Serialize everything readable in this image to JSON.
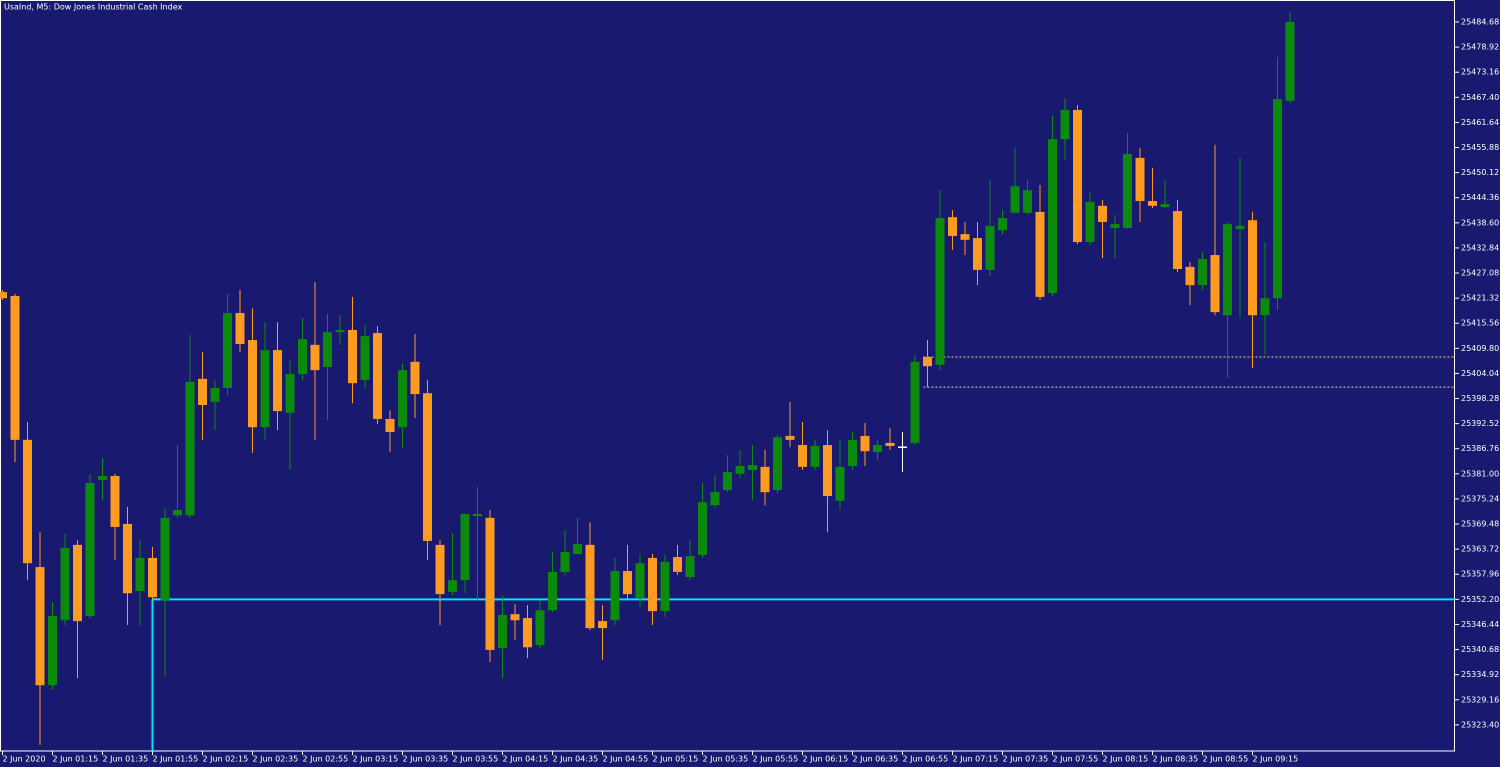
{
  "chart_data": {
    "type": "candlestick",
    "title": "UsaInd, M5:  Dow Jones Industrial Cash Index",
    "background": "#191970",
    "up_color": "#0b8a0b",
    "down_color": "#ff9b21",
    "doji_color": "#ffffff",
    "categories": [
      "2 Jun 2020",
      null,
      null,
      null,
      "2 Jun 01:15",
      null,
      null,
      null,
      "2 Jun 01:35",
      null,
      null,
      null,
      "2 Jun 01:55",
      null,
      null,
      null,
      "2 Jun 02:15",
      null,
      null,
      null,
      "2 Jun 02:35",
      null,
      null,
      null,
      "2 Jun 02:55",
      null,
      null,
      null,
      "2 Jun 03:15",
      null,
      null,
      null,
      "2 Jun 03:35",
      null,
      null,
      null,
      "2 Jun 03:55",
      null,
      null,
      null,
      "2 Jun 04:15",
      null,
      null,
      null,
      "2 Jun 04:35",
      null,
      null,
      null,
      "2 Jun 04:55",
      null,
      null,
      null,
      "2 Jun 05:15",
      null,
      null,
      null,
      "2 Jun 05:35",
      null,
      null,
      null,
      "2 Jun 05:55",
      null,
      null,
      null,
      "2 Jun 06:15",
      null,
      null,
      null,
      "2 Jun 06:35",
      null,
      null,
      null,
      "2 Jun 06:55",
      null,
      null,
      null,
      "2 Jun 07:15",
      null,
      null,
      null,
      "2 Jun 07:35",
      null,
      null,
      null,
      "2 Jun 07:55",
      null,
      null,
      null,
      "2 Jun 08:15",
      null,
      null,
      null,
      "2 Jun 08:35",
      null,
      null,
      null,
      "2 Jun 08:55",
      null,
      null,
      null,
      "2 Jun 09:15",
      null,
      null,
      null
    ],
    "open": [
      25422.7,
      25421.8,
      25388.8,
      25359.6,
      25332.5,
      25347.4,
      25364.7,
      25348.4,
      25379.6,
      25380.5,
      25369.5,
      25354.1,
      25361.7,
      25352.0,
      25371.5,
      25371.5,
      25402.8,
      25397.5,
      25400.7,
      25417.9,
      25411.7,
      25391.7,
      25409.4,
      25395.0,
      25403.9,
      25410.6,
      25405.5,
      25413.5,
      25414.0,
      25402.5,
      25413.3,
      25393.6,
      25391.7,
      25406.7,
      25399.5,
      25364.7,
      25353.9,
      25356.6,
      25371.3,
      25370.9,
      25341.0,
      25348.8,
      25347.9,
      25341.7,
      25349.7,
      25358.5,
      25362.6,
      25364.7,
      25347.2,
      25347.4,
      25358.7,
      25352.5,
      25361.7,
      25349.5,
      25361.9,
      25357.3,
      25362.4,
      25373.8,
      25377.3,
      25381.0,
      25381.9,
      25382.6,
      25377.3,
      25389.7,
      25387.6,
      25382.6,
      25387.6,
      25374.8,
      25382.8,
      25389.7,
      25386.0,
      25388.1,
      25387.1,
      25388.1,
      25407.8,
      25406.0,
      25439.9,
      25436.0,
      25435.1,
      25427.8,
      25436.9,
      25440.9,
      25440.9,
      25441.1,
      25422.5,
      25457.8,
      25464.5,
      25434.2,
      25442.5,
      25437.4,
      25437.4,
      25453.5,
      25443.6,
      25442.2,
      25441.3,
      25428.5,
      25424.3,
      25431.2,
      25417.4,
      25437.2,
      25439.2,
      25417.4,
      25421.3,
      25466.6
    ],
    "high": [
      25423.2,
      25422.3,
      25392.9,
      25367.6,
      25351.6,
      25367.2,
      25365.8,
      25381.0,
      25384.6,
      25381.0,
      25373.4,
      25365.8,
      25364.2,
      25373.1,
      25387.6,
      25412.9,
      25409.0,
      25402.5,
      25422.3,
      25423.2,
      25419.0,
      25415.8,
      25415.8,
      25407.1,
      25416.8,
      25425.0,
      25417.7,
      25417.4,
      25421.6,
      25415.1,
      25414.9,
      25395.6,
      25406.4,
      25413.1,
      25402.5,
      25365.8,
      25367.4,
      25371.8,
      25378.0,
      25372.7,
      25353.0,
      25351.1,
      25350.9,
      25352.0,
      25363.1,
      25368.1,
      25370.9,
      25369.9,
      25350.9,
      25361.7,
      25364.7,
      25362.6,
      25362.6,
      25362.4,
      25364.7,
      25365.8,
      25378.9,
      25380.7,
      25385.3,
      25386.5,
      25387.6,
      25386.5,
      25389.9,
      25397.5,
      25392.9,
      25388.8,
      25391.0,
      25388.8,
      25390.6,
      25392.7,
      25388.8,
      25391.5,
      25390.6,
      25408.3,
      25411.7,
      25446.1,
      25441.5,
      25438.8,
      25438.8,
      25448.4,
      25441.5,
      25455.8,
      25448.4,
      25447.3,
      25463.3,
      25467.2,
      25465.6,
      25445.7,
      25443.8,
      25440.4,
      25459.2,
      25455.8,
      25451.2,
      25448.4,
      25443.8,
      25429.6,
      25431.9,
      25456.5,
      25438.8,
      25453.5,
      25441.1,
      25434.2,
      25476.6,
      25487.0
    ],
    "low": [
      25420.9,
      25383.7,
      25356.6,
      25318.8,
      25331.4,
      25346.3,
      25334.1,
      25347.9,
      25375.0,
      25361.2,
      25346.3,
      25346.3,
      25352.0,
      25334.6,
      25370.9,
      25370.9,
      25388.8,
      25391.0,
      25399.1,
      25409.0,
      25385.8,
      25388.8,
      25391.0,
      25381.9,
      25402.5,
      25388.8,
      25393.3,
      25410.6,
      25397.2,
      25400.7,
      25392.4,
      25386.0,
      25386.9,
      25393.8,
      25361.2,
      25346.3,
      25353.2,
      25353.6,
      25352.0,
      25337.8,
      25334.1,
      25342.9,
      25338.7,
      25341.0,
      25349.3,
      25357.8,
      25362.4,
      25345.1,
      25338.3,
      25346.3,
      25352.0,
      25350.4,
      25346.3,
      25348.1,
      25357.8,
      25356.6,
      25361.7,
      25373.1,
      25376.8,
      25380.0,
      25375.0,
      25373.8,
      25376.6,
      25387.1,
      25381.9,
      25381.9,
      25367.6,
      25372.7,
      25381.9,
      25382.8,
      25384.2,
      25386.5,
      25381.4,
      25387.6,
      25400.9,
      25404.8,
      25432.4,
      25431.2,
      25424.3,
      25426.6,
      25435.8,
      25440.9,
      25440.4,
      25420.9,
      25421.8,
      25453.0,
      25433.7,
      25433.5,
      25430.5,
      25430.5,
      25437.2,
      25438.8,
      25442.0,
      25442.0,
      25427.3,
      25419.7,
      25423.2,
      25417.4,
      25403.0,
      25416.8,
      25405.3,
      25408.3,
      25418.6,
      25466.1
    ],
    "close": [
      25421.3,
      25388.8,
      25360.5,
      25332.5,
      25348.4,
      25364.0,
      25347.2,
      25378.9,
      25380.5,
      25368.8,
      25353.6,
      25361.7,
      25352.7,
      25370.9,
      25372.7,
      25402.1,
      25396.8,
      25400.7,
      25417.9,
      25410.8,
      25391.7,
      25409.4,
      25395.4,
      25403.9,
      25411.9,
      25404.8,
      25413.5,
      25414.0,
      25401.8,
      25412.6,
      25393.6,
      25390.6,
      25404.8,
      25399.3,
      25365.6,
      25353.4,
      25356.6,
      25371.8,
      25371.8,
      25340.6,
      25348.6,
      25347.4,
      25341.2,
      25349.7,
      25358.5,
      25363.1,
      25364.9,
      25345.6,
      25345.6,
      25358.7,
      25353.4,
      25360.5,
      25349.5,
      25360.8,
      25358.5,
      25362.1,
      25374.5,
      25376.8,
      25381.4,
      25382.8,
      25383.0,
      25376.8,
      25389.4,
      25388.8,
      25382.6,
      25387.4,
      25375.9,
      25382.6,
      25388.8,
      25386.2,
      25387.6,
      25387.4,
      25387.1,
      25406.7,
      25405.7,
      25439.7,
      25435.6,
      25434.7,
      25427.8,
      25437.9,
      25439.7,
      25447.0,
      25446.1,
      25421.6,
      25457.8,
      25464.5,
      25434.2,
      25443.4,
      25438.8,
      25438.3,
      25454.4,
      25443.6,
      25442.5,
      25442.9,
      25428.0,
      25424.3,
      25430.3,
      25418.1,
      25438.3,
      25437.9,
      25417.4,
      25421.3,
      25467.0,
      25484.7
    ],
    "levels": [
      {
        "value": 25352.2,
        "style": "solid",
        "color": "#00e5ff"
      },
      {
        "value": 25407.8,
        "style": "dashed",
        "color": "#d8d890"
      },
      {
        "value": 25400.9,
        "style": "dashed",
        "color": "#d8d890"
      }
    ],
    "ylim": [
      25317.4,
      25489.5
    ],
    "yticks": [
      25484.68,
      25478.92,
      25473.16,
      {
        "value": 25467.4,
        "label": "25467.40"
      },
      25461.64,
      25455.88,
      25450.12,
      25444.36,
      {
        "value": 25438.6,
        "label": "25438.60"
      },
      25432.84,
      25427.08,
      25421.32,
      25415.56,
      {
        "value": 25409.8,
        "label": "25409.80"
      },
      25404.04,
      25398.28,
      25392.52,
      25386.76,
      {
        "value": 25381,
        "label": "25381.00"
      },
      25375.24,
      25369.48,
      25363.72,
      25357.96,
      {
        "value": 25352.2,
        "label": "25352.20"
      },
      25346.44,
      25340.68,
      25334.92,
      25329.16,
      {
        "value": 25323.4,
        "label": "25323.40"
      }
    ]
  }
}
